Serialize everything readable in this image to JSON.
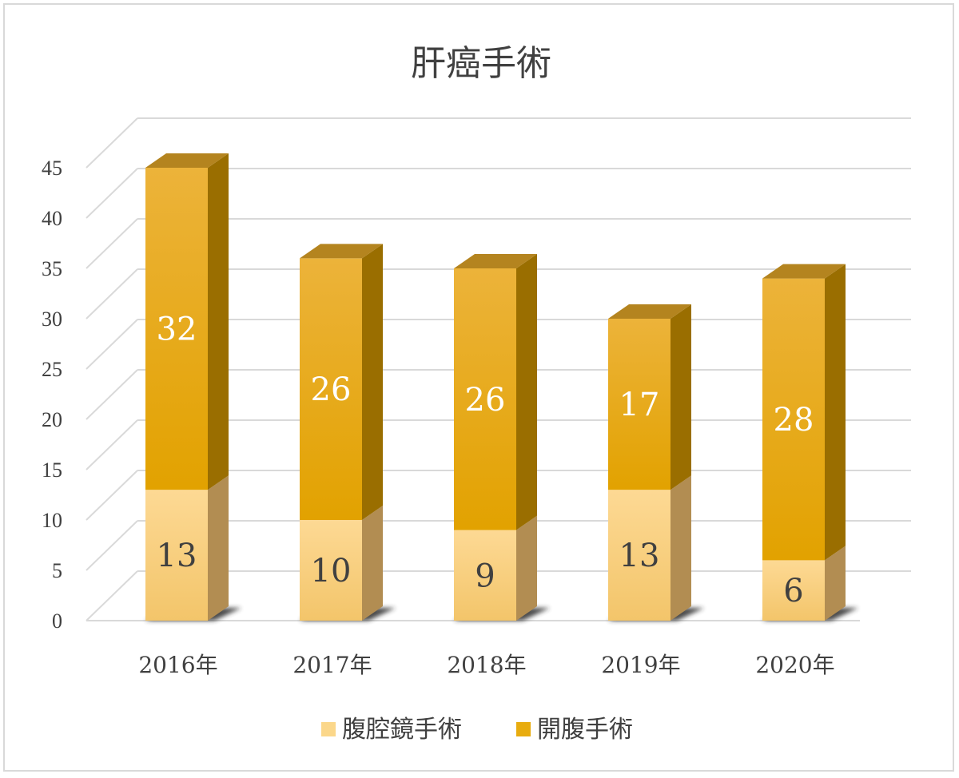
{
  "chart_data": {
    "type": "bar",
    "stacked": true,
    "three_d": true,
    "title": "肝癌手術",
    "categories": [
      "2016年",
      "2017年",
      "2018年",
      "2019年",
      "2020年"
    ],
    "series": [
      {
        "name": "腹腔鏡手術",
        "values": [
          13,
          10,
          9,
          13,
          6
        ],
        "color": "#fbd78a",
        "label_color": "#404040"
      },
      {
        "name": "開腹手術",
        "values": [
          32,
          26,
          26,
          17,
          28
        ],
        "color": "#e8ac0f",
        "label_color": "#ffffff"
      }
    ],
    "ylim": [
      0,
      45
    ],
    "yticks": [
      0,
      5,
      10,
      15,
      20,
      25,
      30,
      35,
      40,
      45
    ],
    "grid": true,
    "legend_position": "bottom",
    "xlabel": "",
    "ylabel": ""
  }
}
